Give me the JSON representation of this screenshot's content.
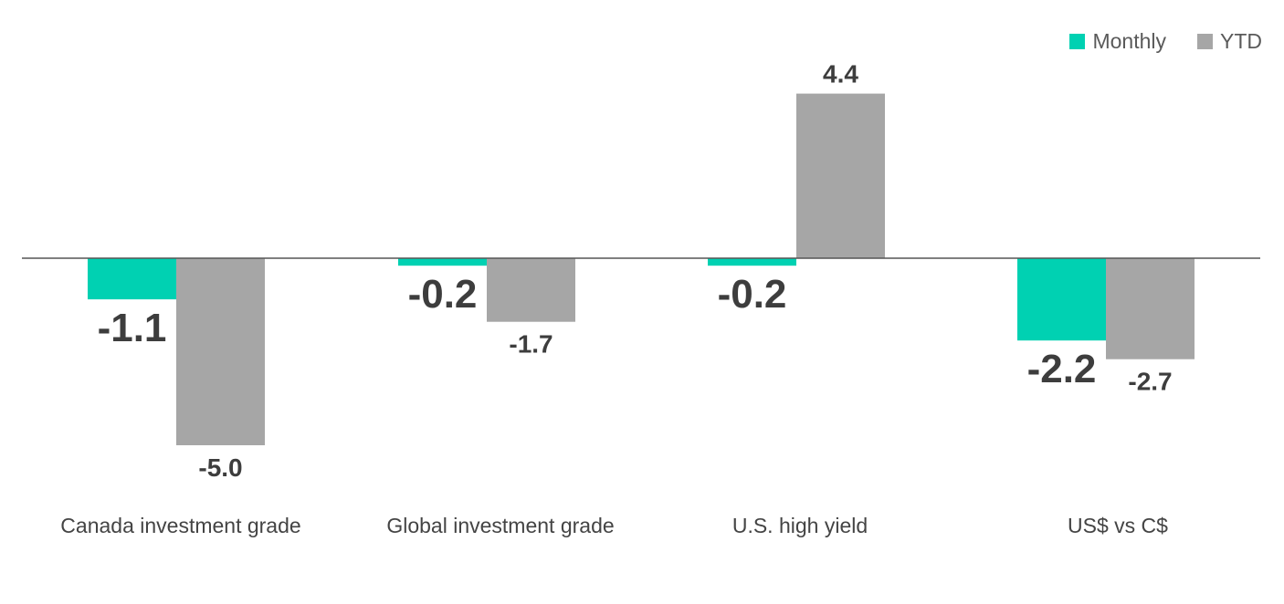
{
  "chart_data": {
    "type": "bar",
    "categories": [
      "Canada investment grade",
      "Global investment grade",
      "U.S. high yield",
      "US$ vs C$"
    ],
    "series": [
      {
        "name": "Monthly",
        "values": [
          -1.1,
          -0.2,
          -0.2,
          -2.2
        ],
        "labels": [
          "-1.1",
          "-0.2",
          "-0.2",
          "-2.2"
        ],
        "color": "#00d1b2"
      },
      {
        "name": "YTD",
        "values": [
          -5.0,
          -1.7,
          4.4,
          -2.7
        ],
        "labels": [
          "-5.0",
          "-1.7",
          "4.4",
          "-2.7"
        ],
        "color": "#a6a6a6"
      }
    ],
    "title": "",
    "xlabel": "",
    "ylabel": "",
    "ylim": [
      -5.0,
      4.4
    ],
    "grid": false,
    "legend": "top-right"
  }
}
